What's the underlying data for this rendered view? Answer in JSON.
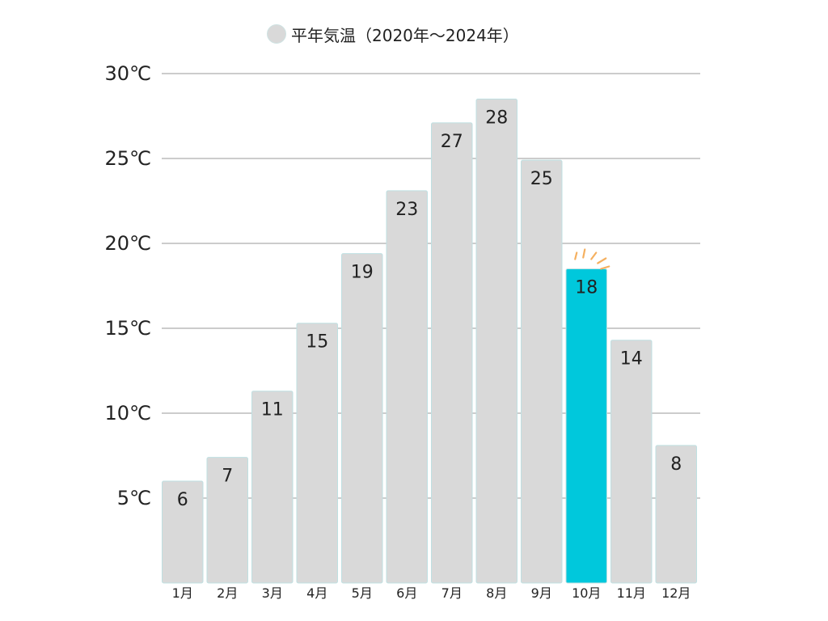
{
  "chart_data": {
    "type": "bar",
    "legend": {
      "label": "平年気温（2020年〜2024年）",
      "placement": "top-center"
    },
    "categories": [
      "1月",
      "2月",
      "3月",
      "4月",
      "5月",
      "6月",
      "7月",
      "8月",
      "9月",
      "10月",
      "11月",
      "12月"
    ],
    "series": [
      {
        "name": "平年気温（2020年〜2024年）",
        "values": [
          6,
          7.4,
          11.3,
          15.3,
          19.4,
          23.1,
          27.1,
          28.5,
          24.9,
          18.5,
          14.3,
          8.1
        ],
        "labels": [
          "6",
          "7",
          "11",
          "15",
          "19",
          "23",
          "27",
          "28",
          "25",
          "18",
          "14",
          "8"
        ]
      }
    ],
    "y_ticks": [
      {
        "value": 5,
        "label": "5℃"
      },
      {
        "value": 10,
        "label": "10℃"
      },
      {
        "value": 15,
        "label": "15℃"
      },
      {
        "value": 20,
        "label": "20℃"
      },
      {
        "value": 25,
        "label": "25℃"
      },
      {
        "value": 30,
        "label": "30℃"
      }
    ],
    "ylim": [
      0,
      30
    ],
    "grid": true,
    "highlight_index": 9,
    "colors": {
      "bar": "#d9d9d9",
      "bar_highlight": "#00c8dc",
      "bar_edge": "#bfe0e2",
      "grid": "#9a9a9a",
      "sparkle": "#f5b060",
      "text": "#222222"
    }
  }
}
